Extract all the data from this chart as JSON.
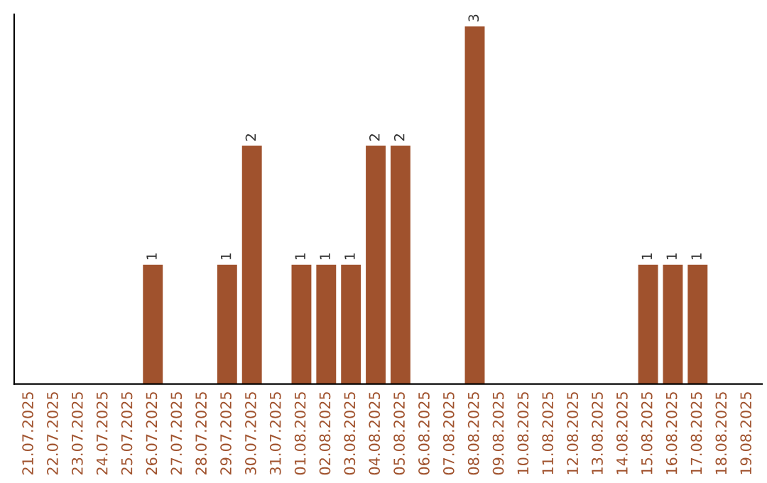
{
  "chart_data": {
    "type": "bar",
    "categories": [
      "21.07.2025",
      "22.07.2025",
      "23.07.2025",
      "24.07.2025",
      "25.07.2025",
      "26.07.2025",
      "27.07.2025",
      "28.07.2025",
      "29.07.2025",
      "30.07.2025",
      "31.07.2025",
      "01.08.2025",
      "02.08.2025",
      "03.08.2025",
      "04.08.2025",
      "05.08.2025",
      "06.08.2025",
      "07.08.2025",
      "08.08.2025",
      "09.08.2025",
      "10.08.2025",
      "11.08.2025",
      "12.08.2025",
      "13.08.2025",
      "14.08.2025",
      "15.08.2025",
      "16.08.2025",
      "17.08.2025",
      "18.08.2025",
      "19.08.2025"
    ],
    "values": [
      0,
      0,
      0,
      0,
      0,
      1,
      0,
      0,
      1,
      2,
      0,
      1,
      1,
      1,
      2,
      2,
      0,
      0,
      3,
      0,
      0,
      0,
      0,
      0,
      0,
      1,
      1,
      1,
      0,
      0
    ],
    "value_labels": [
      null,
      null,
      null,
      null,
      null,
      "1",
      null,
      null,
      "1",
      "2",
      null,
      "1",
      "1",
      "1",
      "2",
      "2",
      null,
      null,
      "3",
      null,
      null,
      null,
      null,
      null,
      null,
      "1",
      "1",
      "1",
      null,
      null
    ],
    "color": "#a0522d",
    "ylim": [
      0,
      3.1
    ],
    "tick_labels": "x",
    "grid": false,
    "legend": false
  }
}
